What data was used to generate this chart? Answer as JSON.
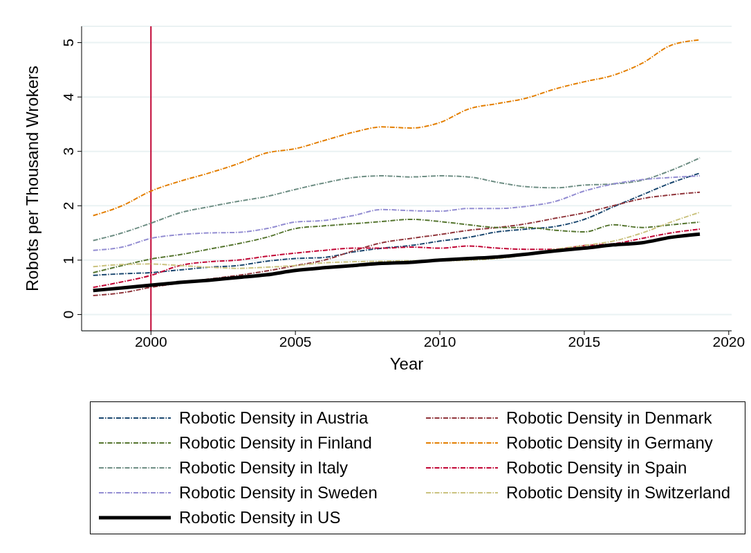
{
  "chart_data": {
    "type": "line",
    "xlabel": "Year",
    "ylabel": "Robots per Thousand Wrokers",
    "x": [
      1998,
      1999,
      2000,
      2001,
      2002,
      2003,
      2004,
      2005,
      2006,
      2007,
      2008,
      2009,
      2010,
      2011,
      2012,
      2013,
      2014,
      2015,
      2016,
      2017,
      2018,
      2019
    ],
    "xlim": [
      1997.6,
      2020.1
    ],
    "xticks": [
      2000,
      2005,
      2010,
      2015,
      2020
    ],
    "ylim": [
      -0.3,
      5.3
    ],
    "yticks": [
      0,
      1,
      2,
      3,
      4,
      5
    ],
    "grid": "y",
    "legend": "bottom",
    "ref_lines": [
      {
        "axis": "x",
        "value": 2000,
        "color": "#c10534"
      }
    ],
    "series": [
      {
        "name": "Robotic Density in Austria",
        "color": "#1a476f",
        "line_style": "dashed",
        "values": [
          0.72,
          0.75,
          0.77,
          0.82,
          0.87,
          0.9,
          0.98,
          1.03,
          1.05,
          1.15,
          1.22,
          1.27,
          1.35,
          1.42,
          1.52,
          1.57,
          1.62,
          1.75,
          1.98,
          2.2,
          2.42,
          2.6
        ]
      },
      {
        "name": "Robotic Density in Denmark",
        "color": "#90353b",
        "line_style": "dashed",
        "values": [
          0.35,
          0.4,
          0.5,
          0.58,
          0.65,
          0.72,
          0.8,
          0.9,
          1.0,
          1.17,
          1.32,
          1.4,
          1.47,
          1.55,
          1.6,
          1.67,
          1.77,
          1.87,
          2.0,
          2.13,
          2.2,
          2.25
        ]
      },
      {
        "name": "Robotic Density in Finland",
        "color": "#55752f",
        "line_style": "dashed",
        "values": [
          0.77,
          0.9,
          1.02,
          1.1,
          1.2,
          1.3,
          1.42,
          1.58,
          1.63,
          1.67,
          1.71,
          1.75,
          1.71,
          1.65,
          1.6,
          1.6,
          1.55,
          1.52,
          1.65,
          1.6,
          1.65,
          1.7
        ]
      },
      {
        "name": "Robotic Density in Germany",
        "color": "#e37e00",
        "line_style": "dashed",
        "values": [
          1.82,
          2.0,
          2.27,
          2.45,
          2.6,
          2.77,
          2.97,
          3.05,
          3.2,
          3.35,
          3.45,
          3.43,
          3.53,
          3.78,
          3.88,
          3.98,
          4.15,
          4.28,
          4.4,
          4.62,
          4.95,
          5.05
        ]
      },
      {
        "name": "Robotic Density in Italy",
        "color": "#6e8e84",
        "line_style": "dashed",
        "values": [
          1.36,
          1.5,
          1.68,
          1.87,
          1.98,
          2.08,
          2.17,
          2.3,
          2.42,
          2.52,
          2.55,
          2.53,
          2.55,
          2.53,
          2.43,
          2.35,
          2.33,
          2.38,
          2.4,
          2.47,
          2.65,
          2.88
        ]
      },
      {
        "name": "Robotic Density in Spain",
        "color": "#c10534",
        "line_style": "dashed",
        "values": [
          0.5,
          0.6,
          0.72,
          0.9,
          0.97,
          1.0,
          1.07,
          1.13,
          1.18,
          1.22,
          1.22,
          1.24,
          1.22,
          1.26,
          1.22,
          1.2,
          1.2,
          1.27,
          1.3,
          1.4,
          1.5,
          1.57
        ]
      },
      {
        "name": "Robotic Density in Sweden",
        "color": "#938dd2",
        "line_style": "dashed",
        "values": [
          1.18,
          1.24,
          1.4,
          1.47,
          1.5,
          1.51,
          1.58,
          1.7,
          1.73,
          1.82,
          1.93,
          1.91,
          1.9,
          1.95,
          1.95,
          1.99,
          2.08,
          2.27,
          2.4,
          2.48,
          2.52,
          2.55
        ]
      },
      {
        "name": "Robotic Density in Switzerland",
        "color": "#cac27e",
        "line_style": "dashed",
        "values": [
          0.88,
          0.92,
          0.93,
          0.9,
          0.87,
          0.85,
          0.87,
          0.9,
          0.95,
          0.97,
          0.98,
          0.99,
          0.99,
          1.0,
          1.03,
          1.1,
          1.2,
          1.27,
          1.35,
          1.5,
          1.7,
          1.88
        ]
      },
      {
        "name": "Robotic Density in US",
        "color": "#000000",
        "line_style": "solid",
        "values": [
          0.44,
          0.49,
          0.54,
          0.59,
          0.63,
          0.68,
          0.73,
          0.81,
          0.86,
          0.9,
          0.94,
          0.96,
          1.0,
          1.03,
          1.06,
          1.11,
          1.17,
          1.22,
          1.28,
          1.32,
          1.42,
          1.48
        ]
      }
    ]
  }
}
